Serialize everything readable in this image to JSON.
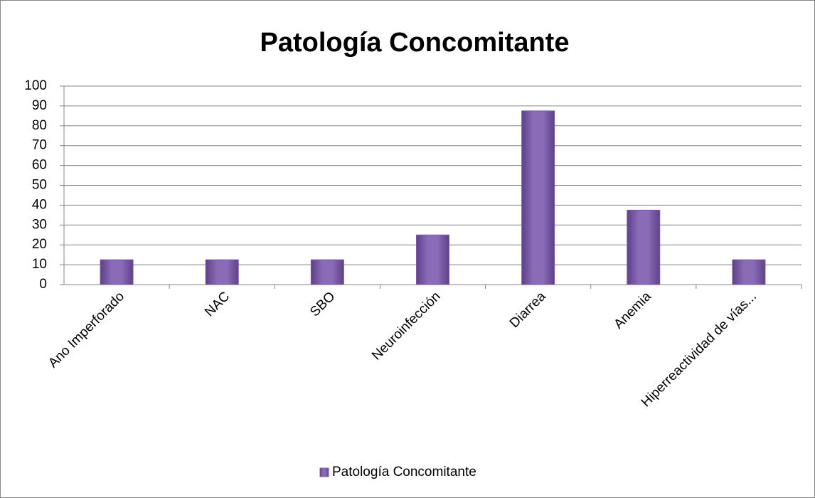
{
  "chart_data": {
    "type": "bar",
    "title": "Patología Concomitante",
    "categories": [
      "Ano Imperforado",
      "NAC",
      "SBO",
      "Neuroinfección",
      "Diarrea",
      "Anemia",
      "Hiperreactividad de vías..."
    ],
    "series": [
      {
        "name": "Patología Concomitante",
        "color": "#7b5ba6",
        "values": [
          12.5,
          12.5,
          12.5,
          25,
          87.5,
          37.5,
          12.5
        ]
      }
    ],
    "ylim": [
      0,
      100
    ],
    "yticks": [
      0,
      10,
      20,
      30,
      40,
      50,
      60,
      70,
      80,
      90,
      100
    ],
    "grid": true,
    "legend": "bottom"
  }
}
